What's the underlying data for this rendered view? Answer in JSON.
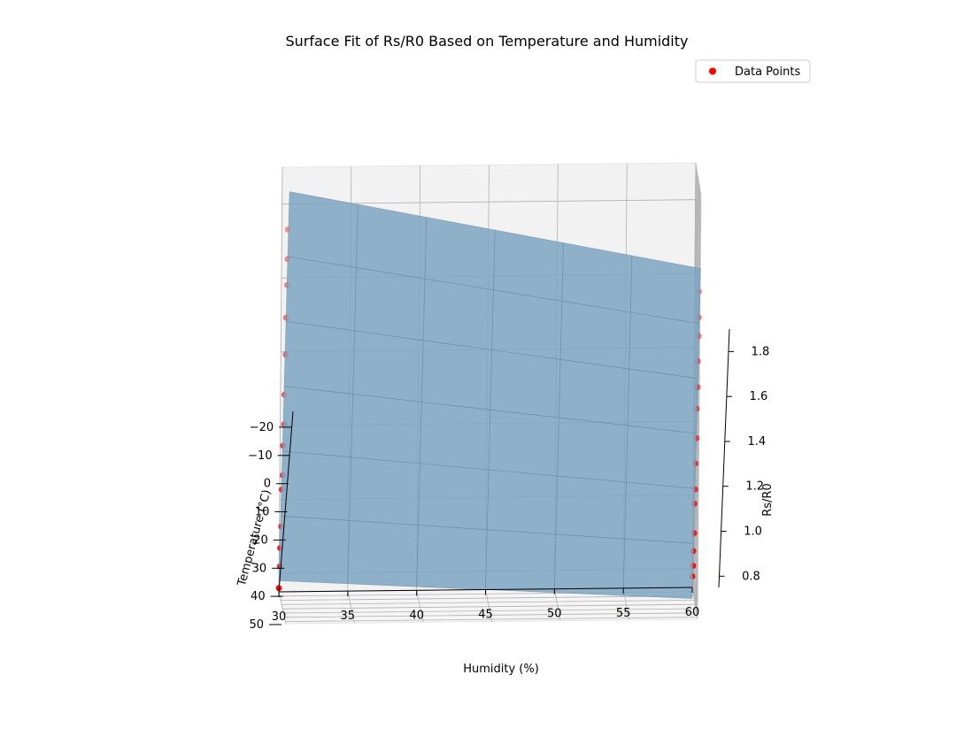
{
  "chart_data": {
    "type": "scatter",
    "kind": "3d-surface-with-scatter",
    "title": "Surface Fit of Rs/R0 Based on Temperature and Humidity",
    "xlabel": "Humidity (%)",
    "ylabel": "Temperature (°C)",
    "zlabel": "Rs/R0",
    "x_ticks": [
      30,
      35,
      40,
      45,
      50,
      55,
      60
    ],
    "y_ticks": [
      -20,
      -10,
      0,
      10,
      20,
      30,
      40,
      50
    ],
    "y_tick_labels": [
      "−20",
      "−10",
      "0",
      "10",
      "20",
      "30",
      "40",
      "50"
    ],
    "z_ticks": [
      0.8,
      1.0,
      1.2,
      1.4,
      1.6,
      1.8
    ],
    "z_tick_labels": [
      "0.8",
      "1.0",
      "1.2",
      "1.4",
      "1.6",
      "1.8"
    ],
    "xlim": [
      30,
      60
    ],
    "ylim": [
      -25,
      50
    ],
    "zlim": [
      0.75,
      1.9
    ],
    "legend": {
      "label": "Data Points",
      "placement": "top-right"
    },
    "surface_color": "#7ea5c2",
    "point_color": "#ff0000",
    "series": [
      {
        "name": "Data Points",
        "humidity": 30,
        "temperature": [
          -10,
          -10,
          -10,
          0,
          0,
          10,
          10,
          20,
          20,
          30,
          30,
          40,
          40,
          50
        ],
        "rs_r0": [
          1.8,
          1.72,
          1.65,
          1.55,
          1.45,
          1.33,
          1.25,
          1.18,
          1.1,
          1.05,
          0.95,
          0.88,
          0.83,
          0.76
        ]
      },
      {
        "name": "Data Points",
        "humidity": 60,
        "temperature": [
          -10,
          -10,
          -10,
          0,
          0,
          10,
          10,
          20,
          20,
          30,
          30,
          40,
          40,
          50
        ],
        "rs_r0": [
          1.62,
          1.55,
          1.5,
          1.42,
          1.35,
          1.28,
          1.2,
          1.12,
          1.05,
          1.0,
          0.92,
          0.86,
          0.82,
          0.78
        ]
      }
    ]
  }
}
